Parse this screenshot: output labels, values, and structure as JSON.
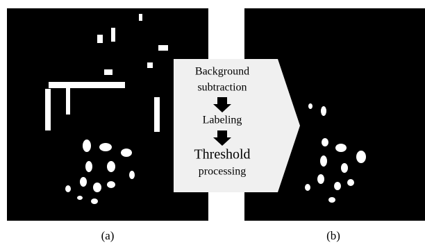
{
  "panels": [
    {
      "caption": "(a)"
    },
    {
      "caption": "(b)"
    }
  ],
  "steps": [
    {
      "lines": [
        "Background",
        "subtraction"
      ]
    },
    {
      "lines": [
        "Labeling"
      ]
    },
    {
      "lines": [
        "Threshold",
        "processing"
      ]
    }
  ]
}
